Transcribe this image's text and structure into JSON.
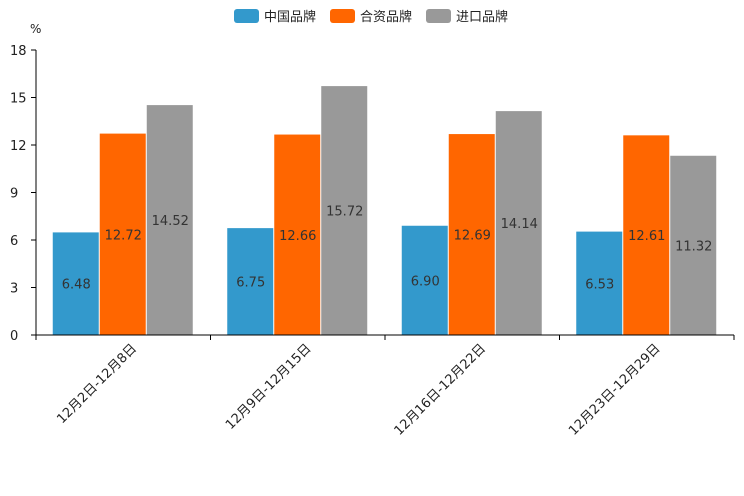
{
  "chart_data": {
    "type": "bar",
    "title": "",
    "ylabel": "%",
    "xlabel": "",
    "ylim": [
      0,
      18
    ],
    "yticks": [
      0,
      3,
      6,
      9,
      12,
      15,
      18
    ],
    "categories": [
      "12月2日-12月8日",
      "12月9日-12月15日",
      "12月16日-12月22日",
      "12月23日-12月29日"
    ],
    "series": [
      {
        "name": "中国品牌",
        "color": "#3399cc",
        "values": [
          6.48,
          6.75,
          6.9,
          6.53
        ]
      },
      {
        "name": "合资品牌",
        "color": "#ff6600",
        "values": [
          12.72,
          12.66,
          12.69,
          12.61
        ]
      },
      {
        "name": "进口品牌",
        "color": "#999999",
        "values": [
          14.52,
          15.72,
          14.14,
          11.32
        ]
      }
    ],
    "legend_position": "top-center",
    "grid": false
  }
}
